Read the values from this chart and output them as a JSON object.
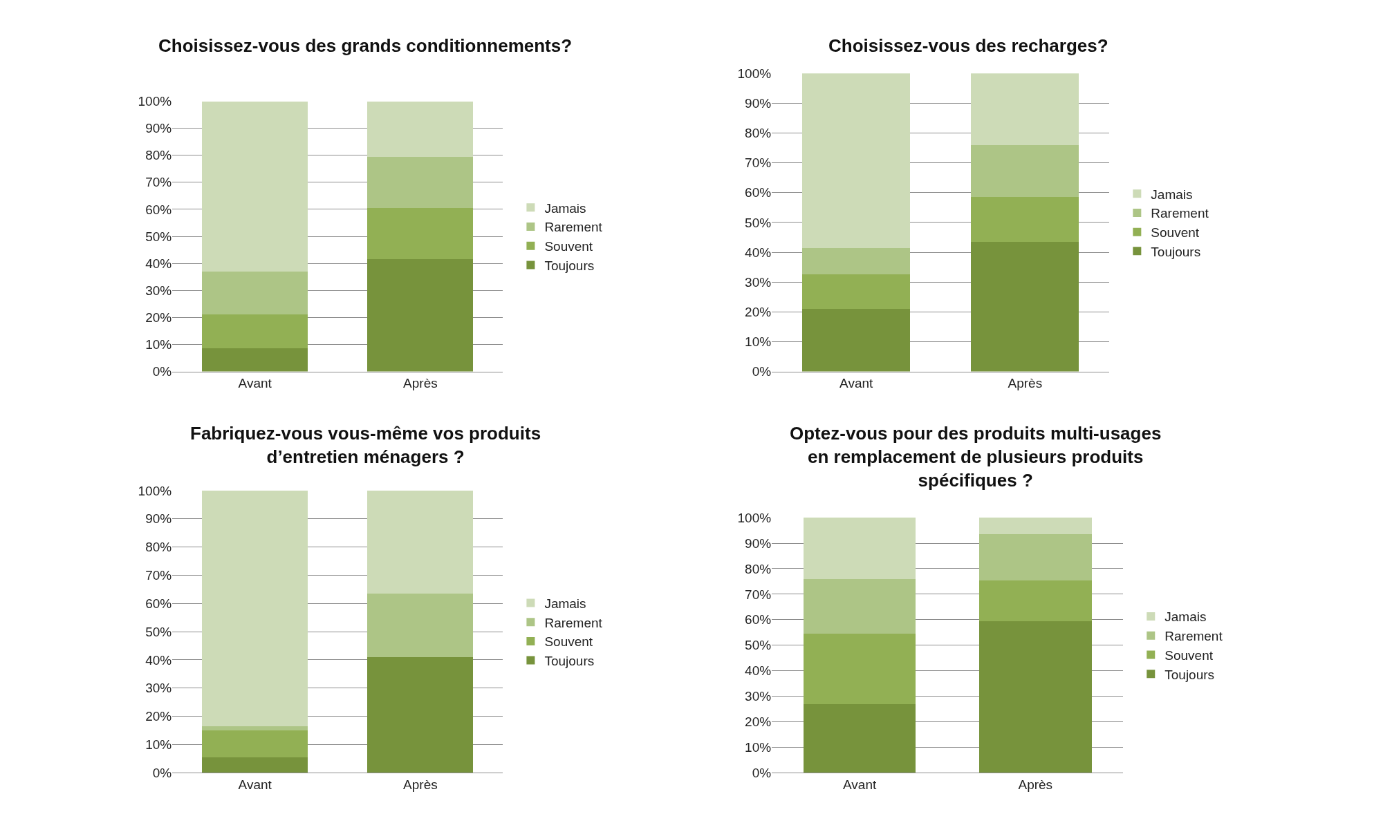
{
  "chart_data": [
    {
      "type": "bar",
      "title": "Choisissez-vous des grands conditionnements?",
      "categories": [
        "Avant",
        "Après"
      ],
      "stacked": true,
      "ylim": [
        0,
        100
      ],
      "yticks": [
        {
          "value": 0,
          "label": "0%"
        },
        {
          "value": 10,
          "label": "10%"
        },
        {
          "value": 20,
          "label": "20%"
        },
        {
          "value": 30,
          "label": "30%"
        },
        {
          "value": 40,
          "label": "40%"
        },
        {
          "value": 50,
          "label": "50%"
        },
        {
          "value": 60,
          "label": "60%"
        },
        {
          "value": 70,
          "label": "70%"
        },
        {
          "value": 80,
          "label": "80%"
        },
        {
          "value": 90,
          "label": "90%"
        },
        {
          "value": 100,
          "label": "100%"
        }
      ],
      "grid": "y",
      "legend": "right",
      "series": [
        {
          "name": "Toujours",
          "color": "#77933c",
          "values": [
            8.5,
            41.5
          ]
        },
        {
          "name": "Souvent",
          "color": "#92b054",
          "values": [
            12.5,
            19
          ]
        },
        {
          "name": "Rarement",
          "color": "#adc586",
          "values": [
            16,
            19
          ]
        },
        {
          "name": "Jamais",
          "color": "#cddbb7",
          "values": [
            63,
            20.5
          ]
        }
      ]
    },
    {
      "type": "bar",
      "title": "Choisissez-vous des recharges?",
      "categories": [
        "Avant",
        "Après"
      ],
      "stacked": true,
      "ylim": [
        0,
        100
      ],
      "yticks": [
        {
          "value": 0,
          "label": "0%"
        },
        {
          "value": 10,
          "label": "10%"
        },
        {
          "value": 20,
          "label": "20%"
        },
        {
          "value": 30,
          "label": "30%"
        },
        {
          "value": 40,
          "label": "40%"
        },
        {
          "value": 50,
          "label": "50%"
        },
        {
          "value": 60,
          "label": "60%"
        },
        {
          "value": 70,
          "label": "70%"
        },
        {
          "value": 80,
          "label": "80%"
        },
        {
          "value": 90,
          "label": "90%"
        },
        {
          "value": 100,
          "label": "100%"
        }
      ],
      "grid": "y",
      "legend": "right",
      "series": [
        {
          "name": "Toujours",
          "color": "#77933c",
          "values": [
            21,
            43.5
          ]
        },
        {
          "name": "Souvent",
          "color": "#92b054",
          "values": [
            11.5,
            15
          ]
        },
        {
          "name": "Rarement",
          "color": "#adc586",
          "values": [
            9,
            17.5
          ]
        },
        {
          "name": "Jamais",
          "color": "#cddbb7",
          "values": [
            58.5,
            24
          ]
        }
      ]
    },
    {
      "type": "bar",
      "title": "Fabriquez-vous vous-même vos produits\nd’entretien ménagers ?",
      "categories": [
        "Avant",
        "Après"
      ],
      "stacked": true,
      "ylim": [
        0,
        100
      ],
      "yticks": [
        {
          "value": 0,
          "label": "0%"
        },
        {
          "value": 10,
          "label": "10%"
        },
        {
          "value": 20,
          "label": "20%"
        },
        {
          "value": 30,
          "label": "30%"
        },
        {
          "value": 40,
          "label": "40%"
        },
        {
          "value": 50,
          "label": "50%"
        },
        {
          "value": 60,
          "label": "60%"
        },
        {
          "value": 70,
          "label": "70%"
        },
        {
          "value": 80,
          "label": "80%"
        },
        {
          "value": 90,
          "label": "90%"
        },
        {
          "value": 100,
          "label": "100%"
        }
      ],
      "grid": "y",
      "legend": "right",
      "series": [
        {
          "name": "Toujours",
          "color": "#77933c",
          "values": [
            5.5,
            41
          ]
        },
        {
          "name": "Souvent",
          "color": "#92b054",
          "values": [
            9.5,
            0
          ]
        },
        {
          "name": "Rarement",
          "color": "#adc586",
          "values": [
            1.5,
            22.5
          ]
        },
        {
          "name": "Jamais",
          "color": "#cddbb7",
          "values": [
            83.5,
            36.5
          ]
        }
      ]
    },
    {
      "type": "bar",
      "title": "Optez-vous pour des produits multi-usages\nen remplacement de plusieurs produits\nspécifiques ?",
      "categories": [
        "Avant",
        "Après"
      ],
      "stacked": true,
      "ylim": [
        0,
        100
      ],
      "yticks": [
        {
          "value": 0,
          "label": "0%"
        },
        {
          "value": 10,
          "label": "10%"
        },
        {
          "value": 20,
          "label": "20%"
        },
        {
          "value": 30,
          "label": "30%"
        },
        {
          "value": 40,
          "label": "40%"
        },
        {
          "value": 50,
          "label": "50%"
        },
        {
          "value": 60,
          "label": "60%"
        },
        {
          "value": 70,
          "label": "70%"
        },
        {
          "value": 80,
          "label": "80%"
        },
        {
          "value": 90,
          "label": "90%"
        },
        {
          "value": 100,
          "label": "100%"
        }
      ],
      "grid": "y",
      "legend": "right",
      "series": [
        {
          "name": "Toujours",
          "color": "#77933c",
          "values": [
            27,
            59.5
          ]
        },
        {
          "name": "Souvent",
          "color": "#92b054",
          "values": [
            27.5,
            16
          ]
        },
        {
          "name": "Rarement",
          "color": "#adc586",
          "values": [
            21.5,
            18
          ]
        },
        {
          "name": "Jamais",
          "color": "#cddbb7",
          "values": [
            24,
            6.5
          ]
        }
      ]
    }
  ]
}
